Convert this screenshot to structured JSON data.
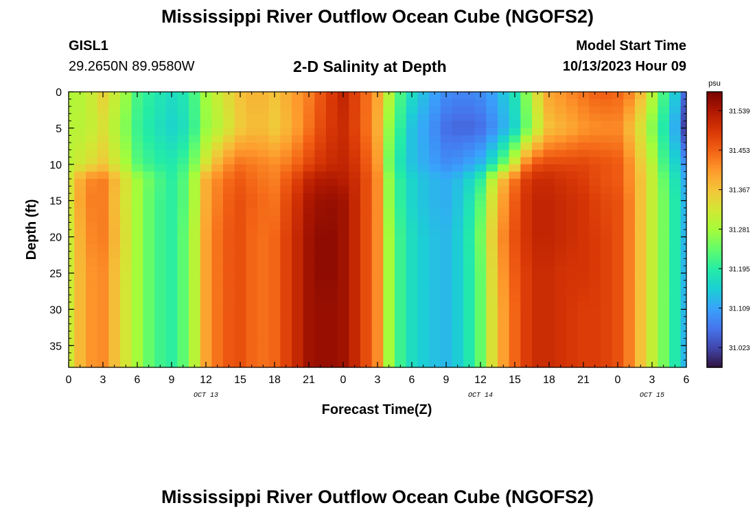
{
  "header": {
    "title": "Mississippi River Outflow Ocean Cube (NGOFS2)",
    "station_id": "GISL1",
    "station_coords": "29.2650N  89.9580W",
    "plot_subtitle": "2-D Salinity at Depth",
    "model_start_label": "Model Start Time",
    "model_start_value": "10/13/2023 Hour 09"
  },
  "footer": {
    "title_repeat": "Mississippi River Outflow Ocean Cube (NGOFS2)"
  },
  "chart_data": {
    "type": "heatmap",
    "title": "2-D Salinity at Depth",
    "xlabel": "Forecast Time(Z)",
    "ylabel": "Depth (ft)",
    "x_start": "2023-10-13 00Z",
    "x_step_hours": 1,
    "x_tick_labels": [
      "0",
      "3",
      "6",
      "9",
      "12",
      "15",
      "18",
      "21",
      "0",
      "3",
      "6",
      "9",
      "12",
      "15",
      "18",
      "21",
      "0",
      "3",
      "6"
    ],
    "x_tick_hours": [
      0,
      3,
      6,
      9,
      12,
      15,
      18,
      21,
      24,
      27,
      30,
      33,
      36,
      39,
      42,
      45,
      48,
      51,
      54
    ],
    "date_labels": [
      {
        "text": "OCT 13",
        "hour": 12
      },
      {
        "text": "OCT 14",
        "hour": 36
      },
      {
        "text": "OCT 15",
        "hour": 51
      }
    ],
    "xlim": [
      0,
      54
    ],
    "ylim": [
      0,
      38
    ],
    "y_inverted": true,
    "y_tick_labels": [
      "0",
      "5",
      "10",
      "15",
      "20",
      "25",
      "30",
      "35"
    ],
    "y_tick_values": [
      0,
      5,
      10,
      15,
      20,
      25,
      30,
      35
    ],
    "colorbar": {
      "unit": "psu",
      "tick_labels": [
        "31.539",
        "31.453",
        "31.367",
        "31.281",
        "31.195",
        "31.109",
        "31.023"
      ],
      "tick_values": [
        31.539,
        31.453,
        31.367,
        31.281,
        31.195,
        31.109,
        31.023
      ],
      "range": [
        30.98,
        31.58
      ],
      "colors": [
        "#30123b",
        "#4145ab",
        "#4675ed",
        "#39a2fc",
        "#1bcfd4",
        "#24eca6",
        "#61fc6c",
        "#a4fc3b",
        "#d1e834",
        "#f3c63a",
        "#fe9b2d",
        "#f36315",
        "#d93806",
        "#b11901",
        "#7a0402"
      ]
    },
    "depths_ft": [
      0,
      5,
      10,
      12,
      15,
      20,
      25,
      30,
      38
    ],
    "hours": [
      0,
      1.5,
      3,
      4.5,
      6,
      7.5,
      9,
      10.5,
      12,
      13.5,
      15,
      16.5,
      18,
      19.5,
      21,
      22.5,
      24,
      25.5,
      27,
      28,
      29,
      30,
      31.5,
      33,
      34.5,
      36,
      37.5,
      39,
      40,
      41,
      42,
      43.5,
      45,
      46.5,
      48,
      49,
      50,
      51,
      52,
      53,
      54
    ],
    "salinity_psu": [
      [
        31.29,
        31.3,
        31.35,
        31.3,
        31.22,
        31.19,
        31.17,
        31.19,
        31.28,
        31.33,
        31.37,
        31.39,
        31.37,
        31.4,
        31.43,
        31.48,
        31.52,
        31.47,
        31.4,
        31.3,
        31.22,
        31.17,
        31.12,
        31.09,
        31.08,
        31.09,
        31.12,
        31.18,
        31.26,
        31.34,
        31.4,
        31.42,
        31.44,
        31.46,
        31.45,
        31.43,
        31.38,
        31.3,
        31.22,
        31.15,
        31.06
      ],
      [
        31.3,
        31.3,
        31.33,
        31.28,
        31.21,
        31.18,
        31.16,
        31.18,
        31.27,
        31.31,
        31.36,
        31.38,
        31.36,
        31.39,
        31.44,
        31.49,
        31.51,
        31.47,
        31.39,
        31.27,
        31.2,
        31.14,
        31.1,
        31.06,
        31.05,
        31.06,
        31.1,
        31.16,
        31.24,
        31.31,
        31.37,
        31.39,
        31.41,
        31.42,
        31.42,
        31.38,
        31.33,
        31.26,
        31.19,
        31.12,
        31.02
      ],
      [
        31.3,
        31.33,
        31.36,
        31.31,
        31.23,
        31.2,
        31.19,
        31.22,
        31.33,
        31.41,
        31.44,
        31.43,
        31.42,
        31.44,
        31.48,
        31.51,
        31.52,
        31.49,
        31.41,
        31.25,
        31.18,
        31.14,
        31.11,
        31.09,
        31.1,
        31.13,
        31.2,
        31.33,
        31.43,
        31.47,
        31.48,
        31.48,
        31.48,
        31.47,
        31.46,
        31.42,
        31.36,
        31.3,
        31.22,
        31.16,
        31.1
      ],
      [
        31.33,
        31.42,
        31.43,
        31.36,
        31.28,
        31.23,
        31.2,
        31.24,
        31.39,
        31.44,
        31.46,
        31.44,
        31.43,
        31.47,
        31.52,
        31.54,
        31.53,
        31.5,
        31.42,
        31.27,
        31.2,
        31.16,
        31.13,
        31.12,
        31.14,
        31.2,
        31.35,
        31.44,
        31.49,
        31.51,
        31.51,
        31.5,
        31.49,
        31.47,
        31.46,
        31.42,
        31.37,
        31.31,
        31.24,
        31.18,
        31.12
      ],
      [
        31.33,
        31.43,
        31.43,
        31.35,
        31.28,
        31.22,
        31.2,
        31.24,
        31.39,
        31.45,
        31.47,
        31.45,
        31.44,
        31.49,
        31.54,
        31.56,
        31.55,
        31.5,
        31.42,
        31.27,
        31.2,
        31.16,
        31.13,
        31.12,
        31.15,
        31.23,
        31.38,
        31.46,
        31.5,
        31.52,
        31.52,
        31.51,
        31.5,
        31.48,
        31.47,
        31.43,
        31.37,
        31.31,
        31.25,
        31.19,
        31.13
      ],
      [
        31.32,
        31.42,
        31.43,
        31.36,
        31.28,
        31.22,
        31.2,
        31.25,
        31.4,
        31.46,
        31.47,
        31.44,
        31.45,
        31.5,
        31.55,
        31.57,
        31.55,
        31.5,
        31.42,
        31.28,
        31.21,
        31.17,
        31.14,
        31.13,
        31.16,
        31.25,
        31.4,
        31.47,
        31.5,
        31.52,
        31.52,
        31.51,
        31.5,
        31.49,
        31.47,
        31.43,
        31.37,
        31.31,
        31.25,
        31.19,
        31.13
      ],
      [
        31.32,
        31.41,
        31.42,
        31.35,
        31.28,
        31.22,
        31.2,
        31.25,
        31.4,
        31.46,
        31.47,
        31.44,
        31.45,
        31.5,
        31.55,
        31.57,
        31.55,
        31.5,
        31.42,
        31.28,
        31.21,
        31.17,
        31.14,
        31.13,
        31.16,
        31.24,
        31.39,
        31.46,
        31.49,
        31.51,
        31.51,
        31.5,
        31.5,
        31.49,
        31.47,
        31.43,
        31.37,
        31.31,
        31.25,
        31.19,
        31.13
      ],
      [
        31.32,
        31.41,
        31.42,
        31.35,
        31.28,
        31.22,
        31.2,
        31.25,
        31.4,
        31.46,
        31.47,
        31.44,
        31.45,
        31.5,
        31.55,
        31.56,
        31.55,
        31.5,
        31.42,
        31.28,
        31.21,
        31.17,
        31.14,
        31.13,
        31.16,
        31.24,
        31.38,
        31.45,
        31.49,
        31.51,
        31.51,
        31.5,
        31.49,
        31.49,
        31.47,
        31.43,
        31.37,
        31.31,
        31.25,
        31.19,
        31.13
      ],
      [
        31.32,
        31.41,
        31.42,
        31.35,
        31.28,
        31.22,
        31.2,
        31.25,
        31.4,
        31.46,
        31.47,
        31.44,
        31.45,
        31.5,
        31.55,
        31.56,
        31.55,
        31.5,
        31.42,
        31.28,
        31.21,
        31.17,
        31.14,
        31.13,
        31.16,
        31.24,
        31.38,
        31.45,
        31.49,
        31.51,
        31.51,
        31.5,
        31.49,
        31.49,
        31.47,
        31.43,
        31.37,
        31.31,
        31.25,
        31.19,
        31.13
      ]
    ]
  }
}
